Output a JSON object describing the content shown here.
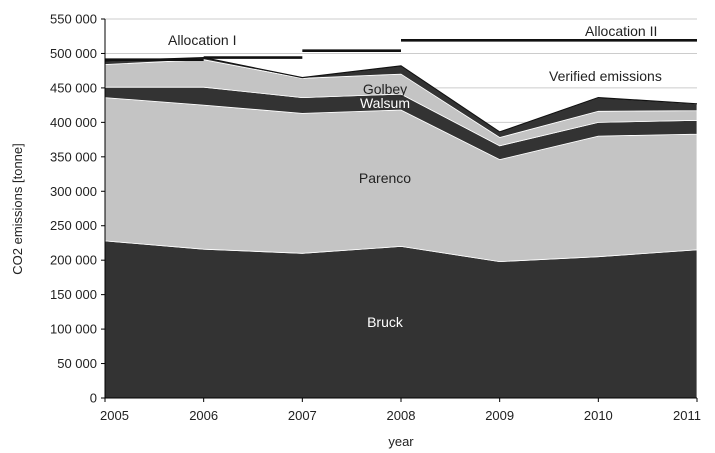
{
  "chart_data": {
    "type": "area",
    "stacked": true,
    "title": "",
    "xlabel": "year",
    "ylabel": "CO2 emissions [tonne]",
    "x": [
      2005,
      2006,
      2007,
      2008,
      2009,
      2010,
      2011
    ],
    "x_tick_labels": [
      "2005",
      "2006",
      "2007",
      "2008",
      "2009",
      "2010",
      "2011"
    ],
    "ylim": [
      0,
      550000
    ],
    "y_ticks": [
      0,
      50000,
      100000,
      150000,
      200000,
      250000,
      300000,
      350000,
      400000,
      450000,
      500000,
      550000
    ],
    "y_tick_labels": [
      "0",
      "50 000",
      "100 000",
      "150 000",
      "200 000",
      "250 000",
      "300 000",
      "350 000",
      "400 000",
      "450 000",
      "500 000",
      "550 000"
    ],
    "grid": "horizontal",
    "series": [
      {
        "name": "Bruck",
        "values": [
          228000,
          216000,
          210000,
          220000,
          198000,
          205000,
          215000
        ],
        "color": "#333333",
        "label_color": "#ffffff"
      },
      {
        "name": "Parenco",
        "values": [
          208000,
          209000,
          203000,
          198000,
          148000,
          175000,
          168000
        ],
        "color": "#c4c4c4",
        "label_color": "#222222"
      },
      {
        "name": "Walsum",
        "values": [
          15000,
          26000,
          23000,
          23000,
          20000,
          20000,
          20000
        ],
        "color": "#333333",
        "label_color": "#ffffff"
      },
      {
        "name": "Golbey",
        "values": [
          33000,
          40000,
          28000,
          29000,
          12000,
          16000,
          14000
        ],
        "color": "#c4c4c4",
        "label_color": "#222222"
      },
      {
        "name": "",
        "values": [
          5000,
          3000,
          1000,
          12000,
          8000,
          20000,
          10000
        ],
        "color": "#333333",
        "label_color": "#ffffff"
      }
    ],
    "verified_emissions": {
      "label": "Verified emissions",
      "values": [
        489000,
        494000,
        465000,
        482000,
        386000,
        436000,
        427000
      ]
    },
    "allocation_phases": [
      {
        "label": "Allocation I",
        "segments": [
          [
            2005,
            2006,
            491000
          ],
          [
            2006,
            2007,
            494000
          ],
          [
            2007,
            2008,
            504000
          ]
        ]
      },
      {
        "label": "Allocation II",
        "segments": [
          [
            2008,
            2011,
            519000
          ]
        ]
      }
    ],
    "colors": {
      "dark": "#333333",
      "light": "#c4c4c4",
      "line": "#111111",
      "grid": "#cccccc"
    }
  }
}
